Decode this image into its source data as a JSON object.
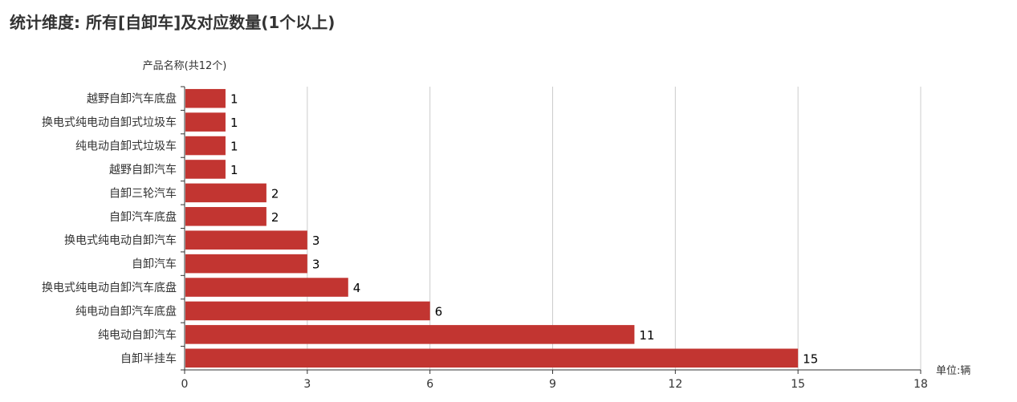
{
  "chart_data": {
    "type": "bar",
    "orientation": "horizontal",
    "title": "统计维度: 所有[自卸车]及对应数量(1个以上)",
    "ylabel": "产品名称(共12个)",
    "xlabel": "单位:辆",
    "categories": [
      "越野自卸汽车底盘",
      "换电式纯电动自卸式垃圾车",
      "纯电动自卸式垃圾车",
      "越野自卸汽车",
      "自卸三轮汽车",
      "自卸汽车底盘",
      "换电式纯电动自卸汽车",
      "自卸汽车",
      "换电式纯电动自卸汽车底盘",
      "纯电动自卸汽车底盘",
      "纯电动自卸汽车",
      "自卸半挂车"
    ],
    "values": [
      1,
      1,
      1,
      1,
      2,
      2,
      3,
      3,
      4,
      6,
      11,
      15
    ],
    "xlim": [
      0,
      18
    ],
    "xticks": [
      "0",
      "3",
      "6",
      "9",
      "12",
      "15",
      "18"
    ],
    "grid": true,
    "bar_color": "#c23531"
  }
}
